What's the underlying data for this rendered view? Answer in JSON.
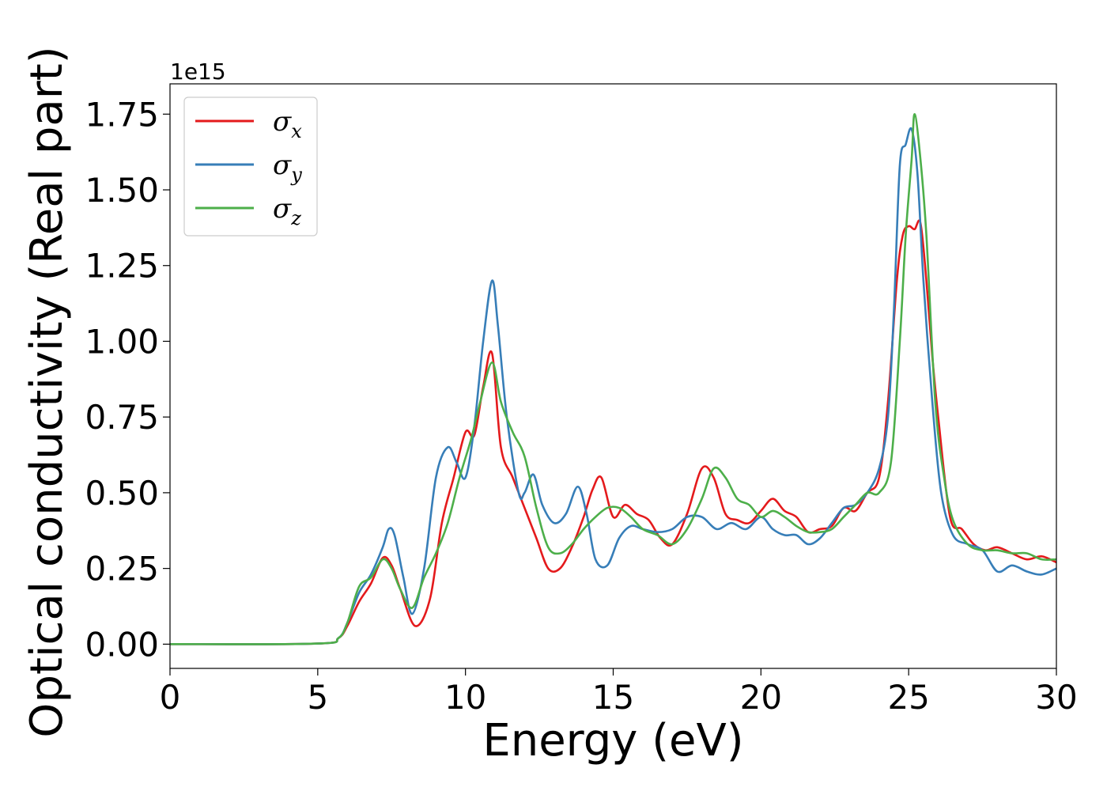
{
  "chart_data": {
    "type": "line",
    "xlabel": "Energy (eV)",
    "ylabel": "Optical conductivity (Real part)",
    "y_offset_text": "1e15",
    "xlim": [
      0,
      30
    ],
    "ylim": [
      -0.08,
      1.85
    ],
    "xticks": [
      0,
      5,
      10,
      15,
      20,
      25,
      30
    ],
    "xtick_labels": [
      "0",
      "5",
      "10",
      "15",
      "20",
      "25",
      "30"
    ],
    "yticks": [
      0.0,
      0.25,
      0.5,
      0.75,
      1.0,
      1.25,
      1.5,
      1.75
    ],
    "ytick_labels": [
      "0.00",
      "0.25",
      "0.50",
      "0.75",
      "1.00",
      "1.25",
      "1.50",
      "1.75"
    ],
    "grid": false,
    "legend_position": "top-left",
    "series": [
      {
        "name": "σx",
        "legend_base": "σ",
        "legend_sub": "x",
        "color": "#e41a1c",
        "x": [
          0,
          5,
          5.7,
          6.0,
          6.4,
          6.8,
          7.2,
          7.5,
          7.8,
          8.3,
          8.8,
          9.2,
          9.6,
          10.0,
          10.3,
          10.6,
          10.9,
          11.2,
          11.6,
          12.0,
          12.4,
          12.8,
          13.2,
          13.6,
          14.0,
          14.3,
          14.6,
          15.0,
          15.4,
          15.8,
          16.2,
          16.6,
          17.0,
          17.5,
          18.0,
          18.4,
          18.8,
          19.2,
          19.6,
          20.0,
          20.4,
          20.8,
          21.2,
          21.6,
          22.0,
          22.4,
          22.8,
          23.2,
          23.6,
          24.0,
          24.3,
          24.6,
          24.8,
          25.0,
          25.2,
          25.4,
          25.6,
          25.8,
          26.0,
          26.4,
          26.8,
          27.2,
          27.6,
          28.0,
          28.5,
          29.0,
          29.5,
          30.0
        ],
        "values": [
          0.0,
          0.002,
          0.02,
          0.06,
          0.14,
          0.2,
          0.285,
          0.26,
          0.18,
          0.06,
          0.15,
          0.4,
          0.55,
          0.7,
          0.69,
          0.85,
          0.96,
          0.65,
          0.55,
          0.45,
          0.35,
          0.25,
          0.25,
          0.32,
          0.42,
          0.51,
          0.55,
          0.42,
          0.46,
          0.43,
          0.41,
          0.35,
          0.33,
          0.43,
          0.58,
          0.55,
          0.43,
          0.41,
          0.4,
          0.44,
          0.48,
          0.44,
          0.42,
          0.37,
          0.38,
          0.39,
          0.45,
          0.44,
          0.5,
          0.55,
          0.8,
          1.2,
          1.35,
          1.38,
          1.37,
          1.39,
          1.2,
          0.95,
          0.75,
          0.42,
          0.38,
          0.33,
          0.31,
          0.32,
          0.3,
          0.28,
          0.29,
          0.27
        ]
      },
      {
        "name": "σy",
        "legend_base": "σ",
        "legend_sub": "y",
        "color": "#377eb8",
        "x": [
          0,
          5,
          5.7,
          6.0,
          6.4,
          6.8,
          7.2,
          7.4,
          7.6,
          7.9,
          8.2,
          8.6,
          9.0,
          9.4,
          9.7,
          10.0,
          10.3,
          10.6,
          10.9,
          11.1,
          11.4,
          11.8,
          12.0,
          12.3,
          12.6,
          13.0,
          13.4,
          13.8,
          14.1,
          14.4,
          14.8,
          15.2,
          15.6,
          16.0,
          16.5,
          17.0,
          17.5,
          18.0,
          18.5,
          19.0,
          19.5,
          20.0,
          20.4,
          20.8,
          21.2,
          21.6,
          22.0,
          22.4,
          22.8,
          23.2,
          23.6,
          24.0,
          24.3,
          24.5,
          24.7,
          24.9,
          25.1,
          25.3,
          25.5,
          25.8,
          26.1,
          26.5,
          27.0,
          27.5,
          28.0,
          28.5,
          29.0,
          29.5,
          30.0
        ],
        "values": [
          0.0,
          0.002,
          0.02,
          0.07,
          0.17,
          0.23,
          0.32,
          0.38,
          0.36,
          0.22,
          0.1,
          0.25,
          0.55,
          0.65,
          0.6,
          0.55,
          0.72,
          1.0,
          1.2,
          1.05,
          0.75,
          0.5,
          0.5,
          0.56,
          0.46,
          0.4,
          0.43,
          0.52,
          0.43,
          0.28,
          0.26,
          0.35,
          0.39,
          0.38,
          0.37,
          0.38,
          0.42,
          0.42,
          0.38,
          0.4,
          0.38,
          0.42,
          0.38,
          0.36,
          0.36,
          0.33,
          0.35,
          0.4,
          0.45,
          0.46,
          0.5,
          0.58,
          0.75,
          1.1,
          1.58,
          1.65,
          1.7,
          1.55,
          1.2,
          0.8,
          0.5,
          0.36,
          0.33,
          0.31,
          0.24,
          0.26,
          0.24,
          0.23,
          0.25
        ]
      },
      {
        "name": "σz",
        "legend_base": "σ",
        "legend_sub": "z",
        "color": "#4daf4a",
        "x": [
          0,
          5,
          5.7,
          6.0,
          6.4,
          6.8,
          7.2,
          7.5,
          7.8,
          8.2,
          8.6,
          9.0,
          9.4,
          9.8,
          10.2,
          10.5,
          10.9,
          11.2,
          11.6,
          12.0,
          12.4,
          12.8,
          13.2,
          13.6,
          14.0,
          14.4,
          14.8,
          15.2,
          15.6,
          16.0,
          16.5,
          17.0,
          17.5,
          18.0,
          18.4,
          18.8,
          19.2,
          19.6,
          20.0,
          20.4,
          20.8,
          21.2,
          21.6,
          22.0,
          22.4,
          22.8,
          23.2,
          23.6,
          24.0,
          24.4,
          24.7,
          24.9,
          25.1,
          25.2,
          25.4,
          25.6,
          25.9,
          26.2,
          26.5,
          27.0,
          27.5,
          28.0,
          28.5,
          29.0,
          29.5,
          30.0
        ],
        "values": [
          0.0,
          0.002,
          0.02,
          0.07,
          0.19,
          0.22,
          0.28,
          0.25,
          0.18,
          0.12,
          0.22,
          0.3,
          0.4,
          0.55,
          0.68,
          0.8,
          0.93,
          0.8,
          0.7,
          0.62,
          0.45,
          0.32,
          0.3,
          0.33,
          0.38,
          0.42,
          0.45,
          0.45,
          0.42,
          0.38,
          0.36,
          0.33,
          0.38,
          0.48,
          0.58,
          0.55,
          0.48,
          0.46,
          0.42,
          0.44,
          0.42,
          0.39,
          0.37,
          0.37,
          0.38,
          0.42,
          0.46,
          0.5,
          0.5,
          0.6,
          1.0,
          1.35,
          1.6,
          1.75,
          1.6,
          1.35,
          0.8,
          0.55,
          0.41,
          0.33,
          0.31,
          0.31,
          0.3,
          0.3,
          0.28,
          0.28
        ]
      }
    ]
  }
}
